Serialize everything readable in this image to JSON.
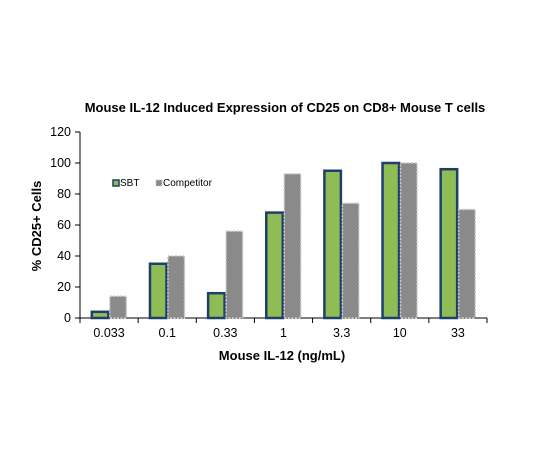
{
  "chart_data": {
    "type": "bar",
    "title": "Mouse IL-12 Induced Expression of CD25 on CD8+ Mouse T cells",
    "xlabel": "Mouse IL-12 (ng/mL)",
    "ylabel": "% CD25+ Cells",
    "ylim": [
      0,
      120
    ],
    "yticks": [
      0,
      20,
      40,
      60,
      80,
      100,
      120
    ],
    "categories": [
      "0.033",
      "0.1",
      "0.33",
      "1",
      "3.3",
      "10",
      "33"
    ],
    "series": [
      {
        "name": "SBT",
        "values": [
          4,
          35,
          16,
          68,
          95,
          100,
          96
        ],
        "fill": "#8fbc55",
        "stroke": "#1f3f6b"
      },
      {
        "name": "Competitor",
        "values": [
          14,
          40,
          56,
          93,
          74,
          100,
          70
        ],
        "fill": "#8a8a8a",
        "stroke": "#c8c8c8"
      }
    ],
    "legend": "upper-left inside plot",
    "grid": false
  }
}
